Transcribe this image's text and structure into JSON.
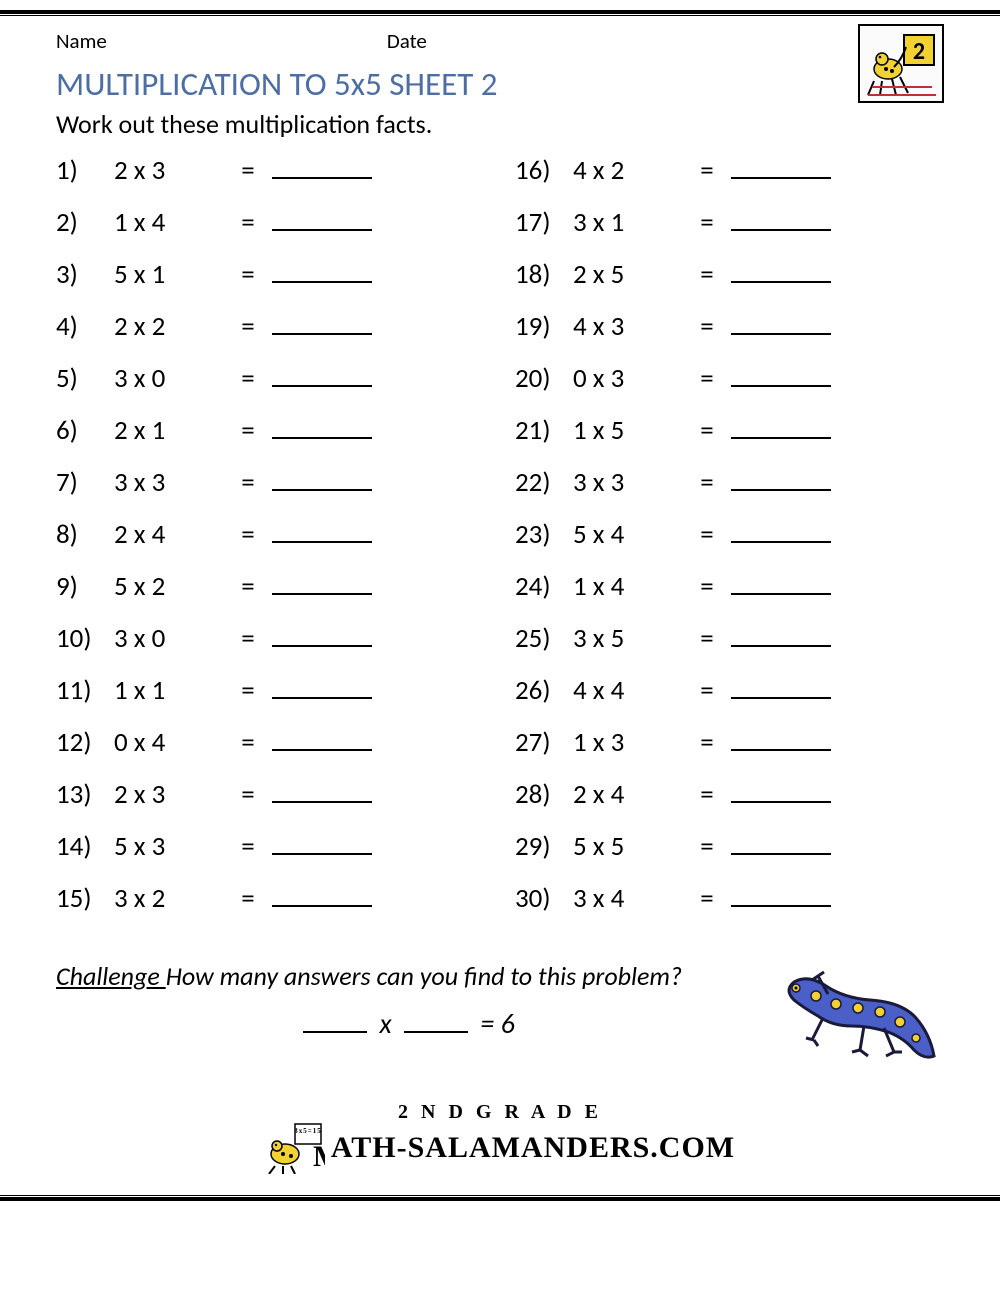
{
  "header": {
    "name_label": "Name",
    "date_label": "Date",
    "title": "MULTIPLICATION TO 5x5 SHEET 2",
    "subtitle": "Work out these multiplication facts.",
    "title_color": "#4c6ea4",
    "badge_number": "2"
  },
  "problems": {
    "left": [
      {
        "n": "1)",
        "expr": "2 x 3"
      },
      {
        "n": "2)",
        "expr": "1 x 4"
      },
      {
        "n": "3)",
        "expr": "5 x 1"
      },
      {
        "n": "4)",
        "expr": "2 x 2"
      },
      {
        "n": "5)",
        "expr": "3 x 0"
      },
      {
        "n": "6)",
        "expr": "2 x 1"
      },
      {
        "n": "7)",
        "expr": "3 x 3"
      },
      {
        "n": "8)",
        "expr": "2 x 4"
      },
      {
        "n": "9)",
        "expr": "5 x 2"
      },
      {
        "n": "10)",
        "expr": "3 x 0"
      },
      {
        "n": "11)",
        "expr": "1 x 1"
      },
      {
        "n": "12)",
        "expr": "0 x 4"
      },
      {
        "n": "13)",
        "expr": "2 x 3"
      },
      {
        "n": "14)",
        "expr": "5 x 3"
      },
      {
        "n": "15)",
        "expr": "3 x 2"
      }
    ],
    "right": [
      {
        "n": "16)",
        "expr": "4 x 2"
      },
      {
        "n": "17)",
        "expr": "3 x 1"
      },
      {
        "n": "18)",
        "expr": "2 x 5"
      },
      {
        "n": "19)",
        "expr": "4 x 3"
      },
      {
        "n": "20)",
        "expr": "0 x 3"
      },
      {
        "n": "21)",
        "expr": "1 x 5"
      },
      {
        "n": "22)",
        "expr": "3 x 3"
      },
      {
        "n": "23)",
        "expr": "5 x 4"
      },
      {
        "n": "24)",
        "expr": "1 x 4"
      },
      {
        "n": "25)",
        "expr": "3 x 5"
      },
      {
        "n": "26)",
        "expr": "4 x 4"
      },
      {
        "n": "27)",
        "expr": "1 x 3"
      },
      {
        "n": "28)",
        "expr": "2 x 4"
      },
      {
        "n": "29)",
        "expr": "5 x 5"
      },
      {
        "n": "30)",
        "expr": "3 x 4"
      }
    ],
    "equals": "="
  },
  "challenge": {
    "label": "Challenge ",
    "question": "How many answers can you find to this problem?",
    "equation_times": "x",
    "equation_eq": "=",
    "equation_result": "6"
  },
  "footer": {
    "grade": "2 N D   G R A D E",
    "site_prefix_logo_text": "3x5=15",
    "site": "ATH-SALAMANDERS.COM"
  },
  "colors": {
    "text": "#000000",
    "title": "#4c6ea4",
    "salamander_body": "#4a5fc7",
    "salamander_spots": "#f2d233",
    "salamander_outline": "#1a1a3a",
    "badge_bg": "#fbfbfb",
    "badge_tile": "#f2d233"
  }
}
